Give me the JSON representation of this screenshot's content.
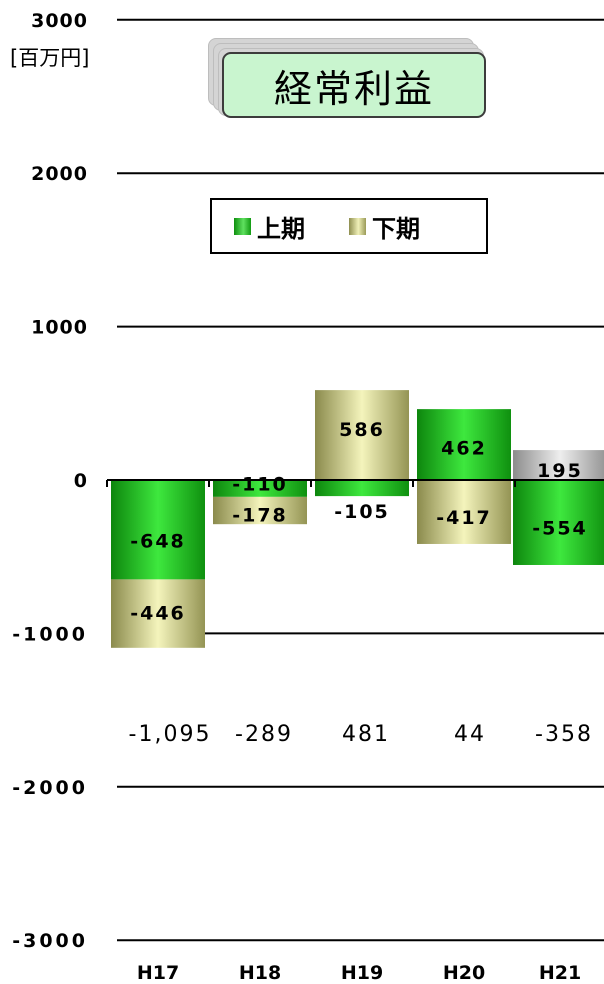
{
  "chart_data": {
    "type": "bar",
    "title": "経常利益",
    "unit_label": "[百万円]",
    "categories": [
      "H17",
      "H18",
      "H19",
      "H20",
      "H21"
    ],
    "series": [
      {
        "name": "上期",
        "values": [
          -648,
          -110,
          -105,
          462,
          -554
        ],
        "value_labels": [
          "-648",
          "-110",
          "-105",
          "462",
          "-554"
        ],
        "color": "#22b422"
      },
      {
        "name": "下期",
        "values": [
          -446,
          -178,
          586,
          -417,
          195
        ],
        "value_labels": [
          "-446",
          "-178",
          "586",
          "-417",
          "195"
        ],
        "color": "#c9c98a"
      }
    ],
    "totals": [
      "-1,095",
      "-289",
      "481",
      "44",
      "-358"
    ],
    "ylim": [
      -3000,
      3000
    ],
    "yticks": [
      3000,
      2000,
      1000,
      0,
      -1000,
      -2000,
      -3000
    ],
    "ytick_labels": [
      "3000",
      "2000",
      "1000",
      "0",
      "-1000",
      "-2000",
      "-3000"
    ],
    "grid": true,
    "legend_position": "top-center",
    "highlight_color_H21_second_half": "#b4b4b4"
  }
}
